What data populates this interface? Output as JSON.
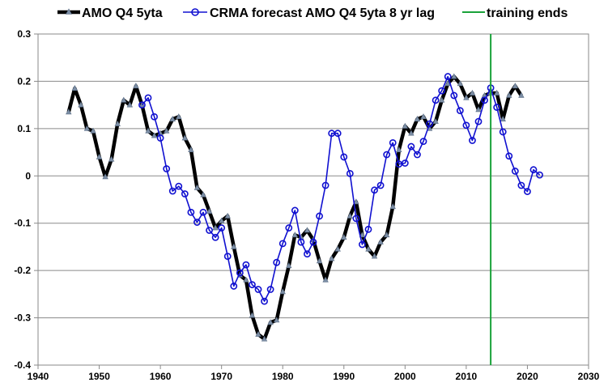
{
  "chart_data": {
    "type": "line",
    "title": "",
    "xlabel": "",
    "ylabel": "",
    "xlim": [
      1940,
      2030
    ],
    "ylim": [
      -0.4,
      0.3
    ],
    "x_ticks": [
      1940,
      1950,
      1960,
      1970,
      1980,
      1990,
      2000,
      2010,
      2020,
      2030
    ],
    "x_tick_labels": [
      "1940",
      "1950",
      "1960",
      "1970",
      "1980",
      "1990",
      "2000",
      "2010",
      "2020",
      "2030"
    ],
    "y_ticks": [
      0.3,
      0.2,
      0.1,
      0,
      -0.1,
      -0.2,
      -0.3,
      -0.4
    ],
    "y_tick_labels": [
      "0.3",
      "0.2",
      "0.1",
      "0",
      "-0.1",
      "-0.2",
      "-0.3",
      "-0.4"
    ],
    "grid": "horizontal",
    "legend_position": "top",
    "series": [
      {
        "name": "AMO Q4 5yta",
        "color": "#000000",
        "marker": "triangle",
        "x": [
          1945,
          1946,
          1947,
          1948,
          1949,
          1950,
          1951,
          1952,
          1953,
          1954,
          1955,
          1956,
          1957,
          1958,
          1959,
          1960,
          1961,
          1962,
          1963,
          1964,
          1965,
          1966,
          1967,
          1968,
          1969,
          1970,
          1971,
          1972,
          1973,
          1974,
          1975,
          1976,
          1977,
          1978,
          1979,
          1980,
          1981,
          1982,
          1983,
          1984,
          1985,
          1986,
          1987,
          1988,
          1989,
          1990,
          1991,
          1992,
          1993,
          1994,
          1995,
          1996,
          1997,
          1998,
          1999,
          2000,
          2001,
          2002,
          2003,
          2004,
          2005,
          2006,
          2007,
          2008,
          2009,
          2010,
          2011,
          2012,
          2013,
          2014,
          2015,
          2016,
          2017,
          2018,
          2019
        ],
        "y": [
          0.135,
          0.185,
          0.15,
          0.1,
          0.095,
          0.04,
          -0.002,
          0.035,
          0.11,
          0.16,
          0.15,
          0.19,
          0.15,
          0.095,
          0.085,
          0.09,
          0.095,
          0.12,
          0.125,
          0.08,
          0.055,
          -0.025,
          -0.04,
          -0.075,
          -0.11,
          -0.095,
          -0.085,
          -0.15,
          -0.21,
          -0.22,
          -0.295,
          -0.335,
          -0.345,
          -0.31,
          -0.305,
          -0.245,
          -0.19,
          -0.125,
          -0.13,
          -0.115,
          -0.135,
          -0.18,
          -0.22,
          -0.175,
          -0.155,
          -0.13,
          -0.085,
          -0.055,
          -0.125,
          -0.155,
          -0.17,
          -0.14,
          -0.125,
          -0.065,
          0.055,
          0.105,
          0.09,
          0.12,
          0.125,
          0.1,
          0.115,
          0.16,
          0.195,
          0.21,
          0.195,
          0.165,
          0.175,
          0.14,
          0.17,
          0.175,
          0.175,
          0.12,
          0.17,
          0.19,
          0.17
        ]
      },
      {
        "name": "CRMA forecast AMO Q4 5yta 8 yr lag",
        "color": "#1010d0",
        "marker": "circle",
        "x": [
          1957,
          1958,
          1959,
          1960,
          1961,
          1962,
          1963,
          1964,
          1965,
          1966,
          1967,
          1968,
          1969,
          1970,
          1971,
          1972,
          1973,
          1974,
          1975,
          1976,
          1977,
          1978,
          1979,
          1980,
          1981,
          1982,
          1983,
          1984,
          1985,
          1986,
          1987,
          1988,
          1989,
          1990,
          1991,
          1992,
          1993,
          1994,
          1995,
          1996,
          1997,
          1998,
          1999,
          2000,
          2001,
          2002,
          2003,
          2004,
          2005,
          2006,
          2007,
          2008,
          2009,
          2010,
          2011,
          2012,
          2013,
          2014,
          2015,
          2016,
          2017,
          2018,
          2019,
          2020,
          2021,
          2022
        ],
        "y": [
          0.15,
          0.165,
          0.125,
          0.08,
          0.015,
          -0.032,
          -0.022,
          -0.038,
          -0.077,
          -0.098,
          -0.077,
          -0.115,
          -0.13,
          -0.11,
          -0.17,
          -0.233,
          -0.205,
          -0.188,
          -0.23,
          -0.24,
          -0.265,
          -0.24,
          -0.183,
          -0.143,
          -0.11,
          -0.073,
          -0.14,
          -0.165,
          -0.14,
          -0.085,
          -0.02,
          0.09,
          0.09,
          0.04,
          0.005,
          -0.09,
          -0.145,
          -0.113,
          -0.03,
          -0.02,
          0.045,
          0.07,
          0.025,
          0.027,
          0.062,
          0.045,
          0.073,
          0.11,
          0.16,
          0.18,
          0.21,
          0.17,
          0.138,
          0.107,
          0.075,
          0.115,
          0.16,
          0.186,
          0.145,
          0.093,
          0.042,
          0.01,
          -0.02,
          -0.033,
          0.013,
          0.002
        ]
      },
      {
        "name": "training ends",
        "color": "#1aa33a",
        "marker": "none",
        "x": [
          2014,
          2014
        ],
        "y": [
          -0.4,
          0.3
        ]
      }
    ]
  }
}
